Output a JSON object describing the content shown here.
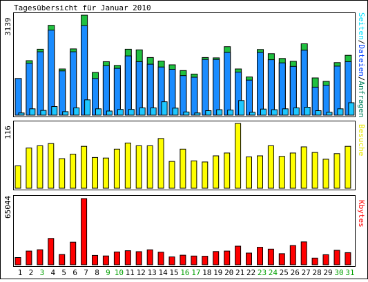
{
  "title": "Tagesübersicht für Januar 2010",
  "colors": {
    "hits": "#00805c",
    "files": "#0040ff",
    "pages": "#00e0ff",
    "visits": "#ffff00",
    "kbytes": "#ff0000",
    "weekday_label": "#000000",
    "weekend_label": "#00a000"
  },
  "chart_data": [
    {
      "type": "bar",
      "title": "Tagesübersicht für Januar 2010",
      "ylabel_max": "3139",
      "legend": [
        "Seiten",
        "Dateien",
        "Anfragen"
      ],
      "legend_separator": "/",
      "legend_placement": "right (vertical)",
      "categories": [
        "1",
        "2",
        "3",
        "4",
        "5",
        "6",
        "7",
        "8",
        "9",
        "10",
        "11",
        "12",
        "13",
        "14",
        "15",
        "16",
        "17",
        "18",
        "19",
        "20",
        "21",
        "22",
        "23",
        "24",
        "25",
        "26",
        "27",
        "28",
        "29",
        "30",
        "31"
      ],
      "weekend_days": [
        "3",
        "9",
        "10",
        "16",
        "17",
        "23",
        "24",
        "30",
        "31"
      ],
      "ylim": [
        0,
        3139
      ],
      "series": [
        {
          "name": "Anfragen",
          "values": [
            1150,
            1710,
            2070,
            2820,
            1450,
            2080,
            3139,
            1340,
            1680,
            1560,
            2070,
            2050,
            1810,
            1700,
            1580,
            1400,
            1290,
            1810,
            1800,
            2150,
            1450,
            1200,
            2060,
            1930,
            1780,
            1690,
            2240,
            1170,
            1060,
            1650,
            1880
          ]
        },
        {
          "name": "Dateien",
          "values": [
            1150,
            1630,
            1990,
            2670,
            1390,
            1990,
            2810,
            1150,
            1550,
            1470,
            1860,
            1680,
            1600,
            1510,
            1440,
            1240,
            1190,
            1750,
            1750,
            1970,
            1350,
            1100,
            1970,
            1740,
            1640,
            1530,
            2040,
            880,
            940,
            1540,
            1680
          ]
        },
        {
          "name": "Seiten",
          "values": [
            70,
            200,
            150,
            270,
            110,
            230,
            480,
            200,
            130,
            180,
            180,
            230,
            230,
            420,
            220,
            100,
            70,
            140,
            170,
            160,
            460,
            90,
            190,
            170,
            200,
            230,
            250,
            140,
            90,
            200,
            390
          ]
        }
      ]
    },
    {
      "type": "bar",
      "ylabel_max": "116",
      "legend": [
        "Besuche"
      ],
      "legend_placement": "right (vertical)",
      "categories": [
        "1",
        "2",
        "3",
        "4",
        "5",
        "6",
        "7",
        "8",
        "9",
        "10",
        "11",
        "12",
        "13",
        "14",
        "15",
        "16",
        "17",
        "18",
        "19",
        "20",
        "21",
        "22",
        "23",
        "24",
        "25",
        "26",
        "27",
        "28",
        "29",
        "30",
        "31"
      ],
      "ylim": [
        0,
        116
      ],
      "series": [
        {
          "name": "Besuche",
          "values": [
            40,
            72,
            76,
            80,
            53,
            61,
            75,
            55,
            54,
            70,
            81,
            76,
            76,
            89,
            48,
            70,
            49,
            47,
            58,
            63,
            116,
            56,
            58,
            76,
            57,
            63,
            74,
            64,
            52,
            62,
            75
          ]
        }
      ]
    },
    {
      "type": "bar",
      "ylabel_max": "65044",
      "legend": [
        "Kbytes"
      ],
      "legend_placement": "right (vertical)",
      "categories": [
        "1",
        "2",
        "3",
        "4",
        "5",
        "6",
        "7",
        "8",
        "9",
        "10",
        "11",
        "12",
        "13",
        "14",
        "15",
        "16",
        "17",
        "18",
        "19",
        "20",
        "21",
        "22",
        "23",
        "24",
        "25",
        "26",
        "27",
        "28",
        "29",
        "30",
        "31"
      ],
      "ylim": [
        0,
        65044
      ],
      "series": [
        {
          "name": "Kbytes",
          "values": [
            7100,
            13500,
            14800,
            25900,
            10100,
            22200,
            65044,
            9200,
            8700,
            12600,
            13800,
            12900,
            14700,
            12400,
            7700,
            9400,
            8600,
            8400,
            13000,
            13500,
            18300,
            11500,
            17200,
            15400,
            10900,
            18900,
            22500,
            6600,
            9900,
            14200,
            11900
          ]
        }
      ]
    }
  ]
}
